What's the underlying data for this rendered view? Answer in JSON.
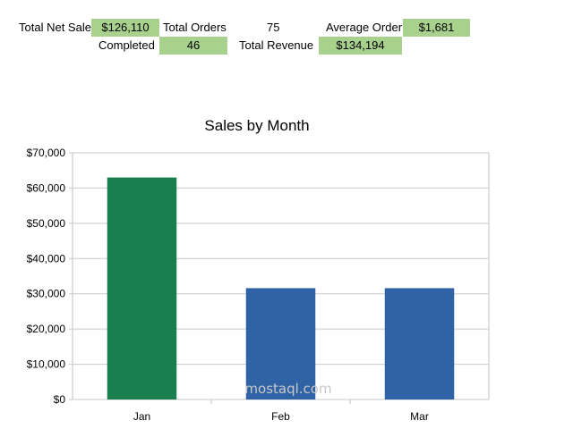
{
  "kpis": {
    "total_net_sales": {
      "label": "Total Net Sales",
      "value": "$126,110"
    },
    "total_orders": {
      "label": "Total Orders",
      "value": "75"
    },
    "average_order": {
      "label": "Average Order",
      "value": "$1,681"
    },
    "completed": {
      "label": "Completed",
      "value": "46"
    },
    "total_revenue": {
      "label": "Total Revenue",
      "value": "$134,194"
    }
  },
  "watermark": "mostaql.com",
  "colors": {
    "highlight": "#a9d18e",
    "bar_first": "#1a7f4e",
    "bar_rest": "#2f63a6"
  },
  "chart_data": {
    "type": "bar",
    "title": "Sales by Month",
    "categories": [
      "Jan",
      "Feb",
      "Mar"
    ],
    "values": [
      63000,
      31600,
      31600
    ],
    "bar_colors": [
      "#1a7f4e",
      "#2f63a6",
      "#2f63a6"
    ],
    "ylim": [
      0,
      70000
    ],
    "yticks": [
      0,
      10000,
      20000,
      30000,
      40000,
      50000,
      60000,
      70000
    ],
    "ytick_labels": [
      "$0",
      "$10,000",
      "$20,000",
      "$30,000",
      "$40,000",
      "$50,000",
      "$60,000",
      "$70,000"
    ],
    "grid": true
  }
}
